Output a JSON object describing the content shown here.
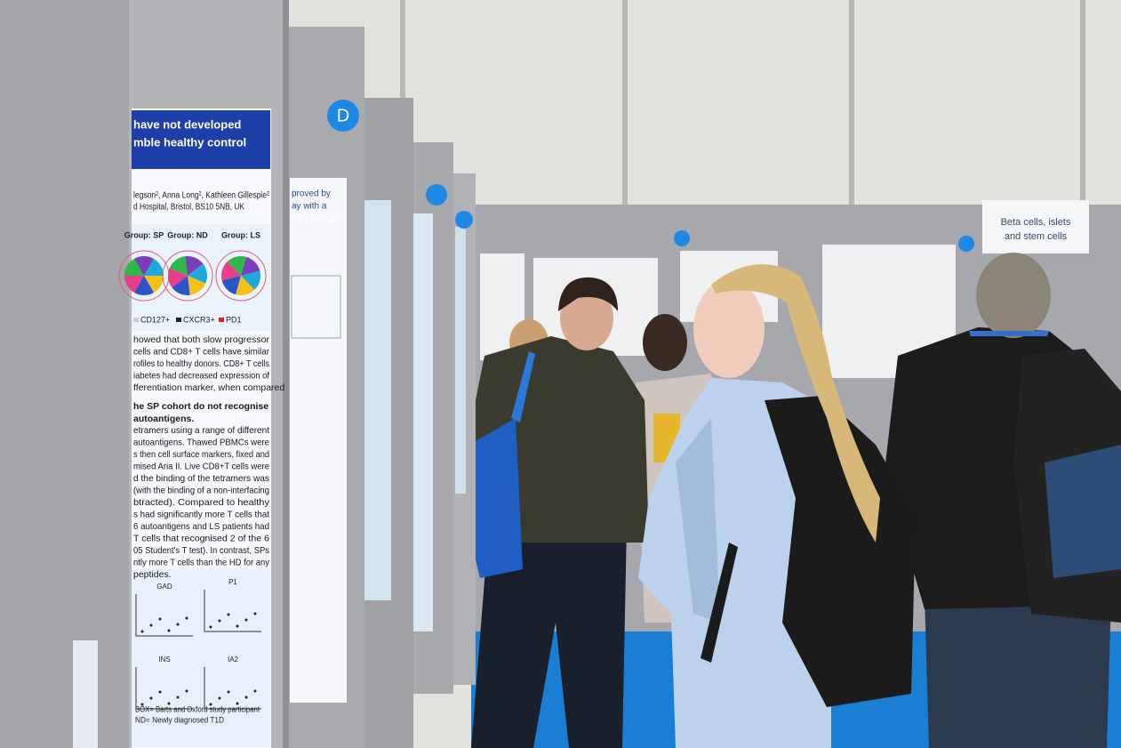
{
  "main_poster": {
    "title": [
      "have not developed",
      "mble healthy control"
    ],
    "authors": "legson², Anna Long², Kathleen Gillespie²",
    "affiliation": "d Hospital, Bristol, BS10 5NB, UK",
    "groups": [
      "Group: SP",
      "Group: ND",
      "Group: LS"
    ],
    "legend": [
      "CD127+",
      "CXCR3+",
      "PD1"
    ],
    "paragraph1": [
      "howed that both slow progressor",
      "cells and CD8+ T cells have similar",
      "rofiles to healthy donors. CD8+ T cells",
      "iabetes had decreased expression of",
      "fferentiation marker, when compared"
    ],
    "heading2": [
      "he SP cohort do not recognise",
      "autoantigens."
    ],
    "paragraph2": [
      "etramers using a range of different",
      "autoantigens. Thawed PBMCs were",
      "s then cell surface markers, fixed and",
      "mised Aria II. Live CD8+T cells were",
      "d the binding of the tetramers was",
      "(with the binding of a non-interfacing",
      "btracted).    Compared to healthy",
      "s had significantly more T cells that",
      "6 autoantigens and LS patients had",
      "T cells that recognised 2 of the 6",
      "05 Student's T test). In contrast, SPs",
      "ntly more T cells than the HD for any",
      "peptides."
    ],
    "plot_labels": [
      "GAD",
      "P1",
      "INS",
      "IA2"
    ],
    "footnotes": [
      "BOX= Barts and Oxford study participant",
      "ND= Newly diagnosed T1D"
    ]
  },
  "side_poster": {
    "lines": [
      "proved by",
      "ay with a",
      "HELMSLEY"
    ]
  },
  "aisle_sign": "D",
  "board_label": [
    "Beta cells, islets",
    "and stem cells"
  ]
}
